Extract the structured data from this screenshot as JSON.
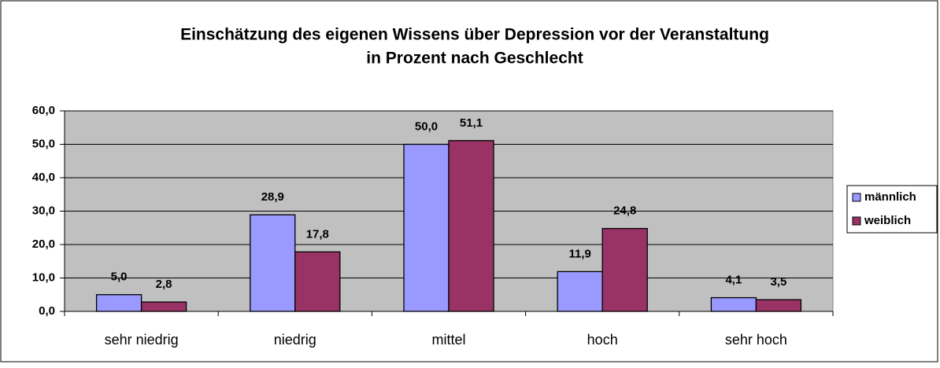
{
  "chart_data": {
    "type": "bar",
    "title": [
      "Einschätzung des eigenen Wissens über Depression vor der Veranstaltung",
      "in Prozent nach Geschlecht"
    ],
    "categories": [
      "sehr niedrig",
      "niedrig",
      "mittel",
      "hoch",
      "sehr hoch"
    ],
    "series": [
      {
        "name": "männlich",
        "color": "#9999ff",
        "values": [
          5.0,
          28.9,
          50.0,
          11.9,
          4.1
        ],
        "value_labels": [
          "5,0",
          "28,9",
          "50,0",
          "11,9",
          "4,1"
        ]
      },
      {
        "name": "weiblich",
        "color": "#993366",
        "values": [
          2.8,
          17.8,
          51.1,
          24.8,
          3.5
        ],
        "value_labels": [
          "2,8",
          "17,8",
          "51,1",
          "24,8",
          "3,5"
        ]
      }
    ],
    "ylim": [
      0,
      60
    ],
    "yticks": [
      {
        "value": 0,
        "label": "0,0"
      },
      {
        "value": 10,
        "label": "10,0"
      },
      {
        "value": 20,
        "label": "20,0"
      },
      {
        "value": 30,
        "label": "30,0"
      },
      {
        "value": 40,
        "label": "40,0"
      },
      {
        "value": 50,
        "label": "50,0"
      },
      {
        "value": 60,
        "label": "60,0"
      }
    ],
    "grid": true,
    "legend": "right",
    "plot_background": "#c0c0c0"
  }
}
